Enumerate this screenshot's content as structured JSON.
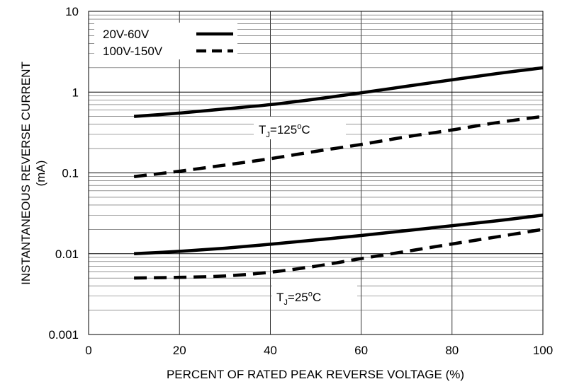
{
  "chart_data": {
    "type": "line",
    "xlabel": "PERCENT OF RATED PEAK REVERSE VOLTAGE (%)",
    "ylabel_line1": "INSTANTANEOUS REVERSE CURRENT",
    "ylabel_line2": "(mA)",
    "xlim": [
      0,
      100
    ],
    "ylim": [
      0.001,
      10
    ],
    "yscale": "log",
    "x_ticks": [
      0,
      20,
      40,
      60,
      80,
      100
    ],
    "x_tick_labels": [
      "0",
      "20",
      "40",
      "60",
      "80",
      "100"
    ],
    "y_ticks": [
      0.001,
      0.01,
      0.1,
      1,
      10
    ],
    "y_tick_labels": [
      "0.001",
      "0.01",
      "0.1",
      "1",
      "10"
    ],
    "grid": true,
    "legend": {
      "position": "top-left",
      "entries": [
        {
          "label": "20V-60V",
          "style": "solid"
        },
        {
          "label": "100V-150V",
          "style": "dashed"
        }
      ]
    },
    "annotations": [
      {
        "main": "T",
        "sub": "J",
        "rest": "=125",
        "sup": "o",
        "unit": "C"
      },
      {
        "main": "T",
        "sub": "J",
        "rest": "=25",
        "sup": "o",
        "unit": "C"
      }
    ],
    "series": [
      {
        "legend_ref": "20V-60V",
        "condition_ref": 0,
        "style": "solid",
        "x": [
          10,
          20,
          30,
          40,
          50,
          60,
          70,
          80,
          90,
          100
        ],
        "y": [
          0.5,
          0.55,
          0.62,
          0.7,
          0.82,
          0.98,
          1.18,
          1.42,
          1.7,
          2.0
        ]
      },
      {
        "legend_ref": "100V-150V",
        "condition_ref": 0,
        "style": "dashed",
        "x": [
          10,
          20,
          30,
          40,
          50,
          60,
          70,
          80,
          90,
          100
        ],
        "y": [
          0.09,
          0.105,
          0.125,
          0.15,
          0.185,
          0.225,
          0.28,
          0.34,
          0.42,
          0.5
        ]
      },
      {
        "legend_ref": "20V-60V",
        "condition_ref": 1,
        "style": "solid",
        "x": [
          10,
          20,
          30,
          40,
          50,
          60,
          70,
          80,
          90,
          100
        ],
        "y": [
          0.01,
          0.0107,
          0.0117,
          0.0131,
          0.0148,
          0.0168,
          0.0193,
          0.0222,
          0.0256,
          0.03
        ]
      },
      {
        "legend_ref": "100V-150V",
        "condition_ref": 1,
        "style": "dashed",
        "x": [
          10,
          20,
          30,
          40,
          50,
          60,
          70,
          80,
          90,
          100
        ],
        "y": [
          0.005,
          0.0051,
          0.0053,
          0.0059,
          0.007,
          0.0087,
          0.0107,
          0.0132,
          0.0162,
          0.02
        ]
      }
    ]
  }
}
